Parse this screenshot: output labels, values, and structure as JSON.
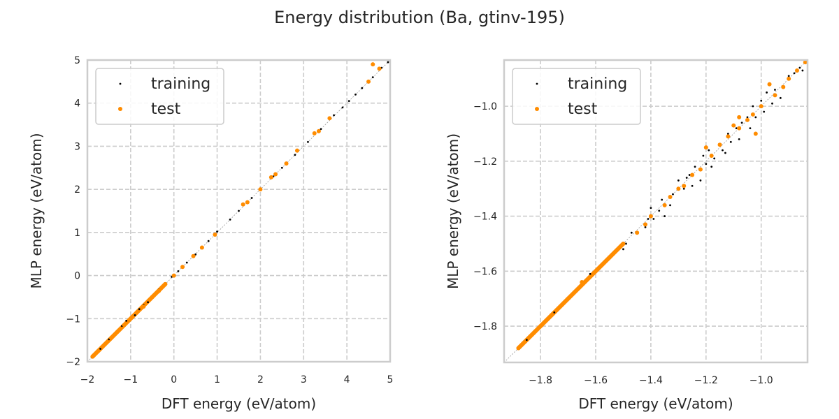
{
  "title": "Energy distribution (Ba, gtinv-195)",
  "chart_data": [
    {
      "type": "scatter",
      "xlabel": "DFT energy (eV/atom)",
      "ylabel": "MLP energy (eV/atom)",
      "xlim": [
        -2,
        5
      ],
      "ylim": [
        -2,
        5
      ],
      "xticks": [
        -2,
        -1,
        0,
        1,
        2,
        3,
        4,
        5
      ],
      "yticks": [
        -2,
        -1,
        0,
        1,
        2,
        3,
        4,
        5
      ],
      "tick_labels": [
        "−2",
        "−1",
        "0",
        "1",
        "2",
        "3",
        "4",
        "5"
      ],
      "ytick_labels": [
        "−2",
        "−1",
        "0",
        "1",
        "2",
        "3",
        "4",
        "5"
      ],
      "legend": {
        "placement": "top-left",
        "entries": [
          "training",
          "test"
        ]
      },
      "grid": true,
      "series": [
        {
          "name": "training",
          "color": "#000000",
          "points": [
            [
              -1.9,
              -1.9
            ],
            [
              -1.7,
              -1.7
            ],
            [
              -1.5,
              -1.48
            ],
            [
              -1.3,
              -1.32
            ],
            [
              -1.2,
              -1.17
            ],
            [
              -1.1,
              -1.05
            ],
            [
              -1.0,
              -0.98
            ],
            [
              -0.9,
              -0.92
            ],
            [
              -0.8,
              -0.78
            ],
            [
              -0.7,
              -0.68
            ],
            [
              -0.6,
              -0.62
            ],
            [
              -0.5,
              -0.48
            ],
            [
              -0.35,
              -0.33
            ],
            [
              -0.2,
              -0.22
            ],
            [
              -0.05,
              -0.03
            ],
            [
              0.1,
              0.1
            ],
            [
              0.3,
              0.3
            ],
            [
              0.5,
              0.49
            ],
            [
              0.8,
              0.8
            ],
            [
              1.0,
              1.02
            ],
            [
              1.3,
              1.3
            ],
            [
              1.5,
              1.5
            ],
            [
              1.8,
              1.8
            ],
            [
              2.0,
              2.0
            ],
            [
              2.3,
              2.3
            ],
            [
              2.5,
              2.5
            ],
            [
              2.8,
              2.8
            ],
            [
              3.1,
              3.1
            ],
            [
              3.4,
              3.4
            ],
            [
              3.7,
              3.72
            ],
            [
              3.9,
              3.9
            ],
            [
              4.05,
              4.05
            ],
            [
              4.2,
              4.2
            ],
            [
              4.35,
              4.35
            ],
            [
              4.6,
              4.6
            ],
            [
              4.8,
              4.82
            ],
            [
              4.95,
              4.95
            ]
          ]
        },
        {
          "name": "test",
          "color": "#ff8c00",
          "points": [
            [
              -1.88,
              -1.88
            ],
            [
              -1.75,
              -1.75
            ],
            [
              -1.6,
              -1.6
            ],
            [
              -1.45,
              -1.45
            ],
            [
              -1.3,
              -1.3
            ],
            [
              -1.15,
              -1.15
            ],
            [
              -1.0,
              -1.0
            ],
            [
              -0.85,
              -0.85
            ],
            [
              -0.7,
              -0.72
            ],
            [
              -0.5,
              -0.5
            ],
            [
              -0.35,
              -0.36
            ],
            [
              -0.2,
              -0.2
            ],
            [
              0.0,
              0.0
            ],
            [
              0.2,
              0.2
            ],
            [
              0.45,
              0.45
            ],
            [
              0.65,
              0.65
            ],
            [
              0.95,
              0.95
            ],
            [
              1.6,
              1.65
            ],
            [
              1.7,
              1.7
            ],
            [
              2.0,
              2.0
            ],
            [
              2.25,
              2.28
            ],
            [
              2.35,
              2.35
            ],
            [
              2.6,
              2.6
            ],
            [
              2.85,
              2.9
            ],
            [
              3.25,
              3.3
            ],
            [
              3.35,
              3.35
            ],
            [
              3.6,
              3.65
            ],
            [
              4.5,
              4.5
            ],
            [
              4.6,
              4.9
            ],
            [
              4.75,
              4.8
            ]
          ]
        }
      ]
    },
    {
      "type": "scatter",
      "xlabel": "DFT energy (eV/atom)",
      "ylabel": "MLP energy (eV/atom)",
      "xlim": [
        -1.932,
        -0.832
      ],
      "ylim": [
        -1.932,
        -0.832
      ],
      "xticks": [
        -1.8,
        -1.6,
        -1.4,
        -1.2,
        -1.0
      ],
      "yticks": [
        -1.8,
        -1.6,
        -1.4,
        -1.2,
        -1.0
      ],
      "tick_labels": [
        "−1.8",
        "−1.6",
        "−1.4",
        "−1.2",
        "−1.0"
      ],
      "ytick_labels": [
        "−1.8",
        "−1.6",
        "−1.4",
        "−1.2",
        "−1.0"
      ],
      "legend": {
        "placement": "top-left",
        "entries": [
          "training",
          "test"
        ]
      },
      "grid": true,
      "series": [
        {
          "name": "training",
          "color": "#000000",
          "points": [
            [
              -1.85,
              -1.85
            ],
            [
              -1.75,
              -1.75
            ],
            [
              -1.7,
              -1.7
            ],
            [
              -1.62,
              -1.61
            ],
            [
              -1.55,
              -1.55
            ],
            [
              -1.5,
              -1.52
            ],
            [
              -1.49,
              -1.5
            ],
            [
              -1.47,
              -1.46
            ],
            [
              -1.42,
              -1.44
            ],
            [
              -1.4,
              -1.37
            ],
            [
              -1.39,
              -1.41
            ],
            [
              -1.37,
              -1.38
            ],
            [
              -1.36,
              -1.34
            ],
            [
              -1.35,
              -1.4
            ],
            [
              -1.33,
              -1.36
            ],
            [
              -1.32,
              -1.32
            ],
            [
              -1.3,
              -1.27
            ],
            [
              -1.28,
              -1.3
            ],
            [
              -1.27,
              -1.26
            ],
            [
              -1.25,
              -1.29
            ],
            [
              -1.24,
              -1.22
            ],
            [
              -1.22,
              -1.27
            ],
            [
              -1.21,
              -1.18
            ],
            [
              -1.2,
              -1.21
            ],
            [
              -1.19,
              -1.16
            ],
            [
              -1.18,
              -1.22
            ],
            [
              -1.17,
              -1.19
            ],
            [
              -1.15,
              -1.14
            ],
            [
              -1.13,
              -1.17
            ],
            [
              -1.12,
              -1.1
            ],
            [
              -1.11,
              -1.13
            ],
            [
              -1.09,
              -1.08
            ],
            [
              -1.08,
              -1.12
            ],
            [
              -1.07,
              -1.06
            ],
            [
              -1.05,
              -1.04
            ],
            [
              -1.04,
              -1.08
            ],
            [
              -1.03,
              -1.0
            ],
            [
              -1.02,
              -1.04
            ],
            [
              -1.0,
              -0.98
            ],
            [
              -0.99,
              -1.02
            ],
            [
              -0.98,
              -0.95
            ],
            [
              -0.96,
              -0.99
            ],
            [
              -0.95,
              -0.94
            ],
            [
              -0.93,
              -0.97
            ],
            [
              -0.92,
              -0.93
            ],
            [
              -0.9,
              -0.89
            ],
            [
              -0.88,
              -0.88
            ],
            [
              -0.86,
              -0.86
            ],
            [
              -0.85,
              -0.87
            ],
            [
              -1.45,
              -1.46
            ],
            [
              -1.41,
              -1.41
            ],
            [
              -1.26,
              -1.25
            ],
            [
              -1.14,
              -1.16
            ]
          ]
        },
        {
          "name": "test",
          "color": "#ff8c00",
          "points": [
            [
              -1.88,
              -1.88
            ],
            [
              -1.82,
              -1.82
            ],
            [
              -1.76,
              -1.76
            ],
            [
              -1.7,
              -1.7
            ],
            [
              -1.65,
              -1.64
            ],
            [
              -1.6,
              -1.6
            ],
            [
              -1.55,
              -1.55
            ],
            [
              -1.5,
              -1.5
            ],
            [
              -1.45,
              -1.46
            ],
            [
              -1.42,
              -1.43
            ],
            [
              -1.4,
              -1.4
            ],
            [
              -1.35,
              -1.36
            ],
            [
              -1.33,
              -1.33
            ],
            [
              -1.3,
              -1.3
            ],
            [
              -1.28,
              -1.29
            ],
            [
              -1.25,
              -1.25
            ],
            [
              -1.22,
              -1.23
            ],
            [
              -1.2,
              -1.15
            ],
            [
              -1.18,
              -1.18
            ],
            [
              -1.15,
              -1.14
            ],
            [
              -1.12,
              -1.11
            ],
            [
              -1.1,
              -1.07
            ],
            [
              -1.08,
              -1.08
            ],
            [
              -1.05,
              -1.05
            ],
            [
              -1.03,
              -1.03
            ],
            [
              -1.0,
              -1.0
            ],
            [
              -0.97,
              -0.92
            ],
            [
              -0.95,
              -0.96
            ],
            [
              -0.92,
              -0.93
            ],
            [
              -0.9,
              -0.9
            ],
            [
              -0.87,
              -0.87
            ],
            [
              -0.84,
              -0.84
            ],
            [
              -1.02,
              -1.1
            ],
            [
              -1.08,
              -1.04
            ]
          ]
        }
      ]
    }
  ]
}
